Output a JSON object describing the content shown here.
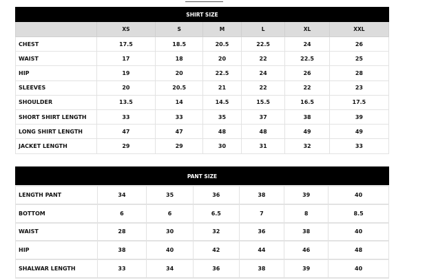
{
  "shirt": {
    "title": "SHIRT SIZE",
    "sizes": [
      "XS",
      "S",
      "M",
      "L",
      "XL",
      "XXL"
    ],
    "rows": [
      {
        "label": "CHEST",
        "values": [
          "17.5",
          "18.5",
          "20.5",
          "22.5",
          "24",
          "26"
        ]
      },
      {
        "label": "WAIST",
        "values": [
          "17",
          "18",
          "20",
          "22",
          "22.5",
          "25"
        ]
      },
      {
        "label": "HIP",
        "values": [
          "19",
          "20",
          "22.5",
          "24",
          "26",
          "28"
        ]
      },
      {
        "label": "SLEEVES",
        "values": [
          "20",
          "20.5",
          "21",
          "22",
          "22",
          "23"
        ]
      },
      {
        "label": "SHOULDER",
        "values": [
          "13.5",
          "14",
          "14.5",
          "15.5",
          "16.5",
          "17.5"
        ]
      },
      {
        "label": "SHORT SHIRT LENGTH",
        "values": [
          "33",
          "33",
          "35",
          "37",
          "38",
          "39"
        ]
      },
      {
        "label": "LONG SHIRT LENGTH",
        "values": [
          "47",
          "47",
          "48",
          "48",
          "49",
          "49"
        ]
      },
      {
        "label": "JACKET LENGTH",
        "values": [
          "29",
          "29",
          "30",
          "31",
          "32",
          "33"
        ]
      }
    ]
  },
  "pant": {
    "title": "PANT SIZE",
    "rows": [
      {
        "label": "LENGTH PANT",
        "values": [
          "34",
          "35",
          "36",
          "38",
          "39",
          "40"
        ]
      },
      {
        "label": "BOTTOM",
        "values": [
          "6",
          "6",
          "6.5",
          "7",
          "8",
          "8.5"
        ]
      },
      {
        "label": "WAIST",
        "values": [
          "28",
          "30",
          "32",
          "36",
          "38",
          "40"
        ]
      },
      {
        "label": "HIP",
        "values": [
          "38",
          "40",
          "42",
          "44",
          "46",
          "48"
        ]
      },
      {
        "label": "SHALWAR LENGTH",
        "values": [
          "33",
          "34",
          "36",
          "38",
          "39",
          "40"
        ]
      }
    ]
  }
}
